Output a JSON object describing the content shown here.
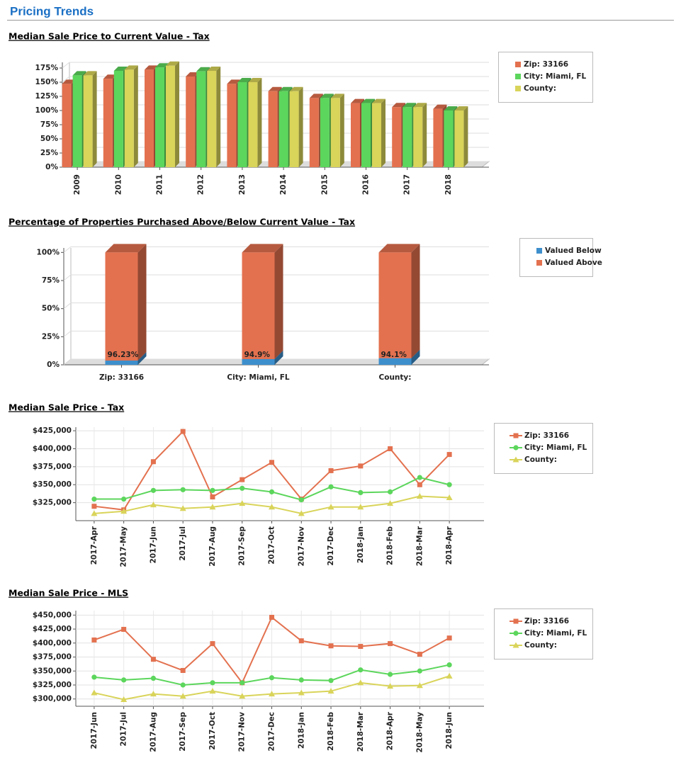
{
  "header": {
    "title": "Pricing Trends"
  },
  "chart_data": [
    {
      "type": "bar",
      "title": "Median Sale Price to Current Value - Tax",
      "categories": [
        "2009",
        "2010",
        "2011",
        "2012",
        "2013",
        "2014",
        "2015",
        "2016",
        "2017",
        "2018"
      ],
      "series": [
        {
          "name": "Zip: 33166",
          "color": "#e3714f",
          "values": [
            147,
            156,
            172,
            160,
            147,
            134,
            122,
            113,
            106,
            103
          ]
        },
        {
          "name": "City: Miami, FL",
          "color": "#5cd65c",
          "values": [
            162,
            170,
            176,
            169,
            150,
            134,
            122,
            113,
            106,
            100
          ]
        },
        {
          "name": "County:",
          "color": "#d9d45a",
          "values": [
            162,
            172,
            179,
            170,
            150,
            134,
            122,
            113,
            106,
            100
          ]
        }
      ],
      "ylim": [
        0,
        185
      ],
      "yticks": [
        {
          "value": 0,
          "label": "0%"
        },
        {
          "value": 25,
          "label": "25%"
        },
        {
          "value": 50,
          "label": "50%"
        },
        {
          "value": 75,
          "label": "75%"
        },
        {
          "value": 100,
          "label": "100%"
        },
        {
          "value": 125,
          "label": "125%"
        },
        {
          "value": 150,
          "label": "150%"
        },
        {
          "value": 175,
          "label": "175%"
        }
      ],
      "grid": true,
      "legend": "right"
    },
    {
      "type": "bar",
      "stacked": true,
      "title": "Percentage of Properties Purchased Above/Below Current Value - Tax",
      "categories": [
        "Zip: 33166",
        "City: Miami, FL",
        "County:"
      ],
      "series": [
        {
          "name": "Valued Below",
          "color": "#3d8fcc",
          "values": [
            3.77,
            5.1,
            5.9
          ]
        },
        {
          "name": "Valued Above",
          "color": "#e3714f",
          "values": [
            96.23,
            94.9,
            94.1
          ],
          "value_labels": [
            "96.23%",
            "94.9%",
            "94.1%"
          ]
        }
      ],
      "ylim": [
        0,
        104
      ],
      "yticks": [
        {
          "value": 0,
          "label": "0%"
        },
        {
          "value": 25,
          "label": "25%"
        },
        {
          "value": 50,
          "label": "50%"
        },
        {
          "value": 75,
          "label": "75%"
        },
        {
          "value": 100,
          "label": "100%"
        }
      ],
      "grid": true,
      "legend": "right"
    },
    {
      "type": "line",
      "title": "Median Sale Price - Tax",
      "categories": [
        "2017-Apr",
        "2017-May",
        "2017-Jun",
        "2017-Jul",
        "2017-Aug",
        "2017-Sep",
        "2017-Oct",
        "2017-Nov",
        "2017-Dec",
        "2018-Jan",
        "2018-Feb",
        "2018-Mar",
        "2018-Apr"
      ],
      "series": [
        {
          "name": "Zip: 33166",
          "color": "#e3714f",
          "marker": "square",
          "values": [
            320000,
            315000,
            382000,
            424000,
            333000,
            357000,
            381000,
            330000,
            369500,
            376000,
            400000,
            350000,
            392000
          ]
        },
        {
          "name": "City: Miami, FL",
          "color": "#5cd65c",
          "marker": "circle",
          "values": [
            330000,
            330000,
            342000,
            343000,
            342000,
            345000,
            340000,
            329000,
            347000,
            339000,
            340000,
            360000,
            350000
          ]
        },
        {
          "name": "County:",
          "color": "#d9d45a",
          "marker": "triangle",
          "values": [
            310000,
            313000,
            322000,
            317000,
            319000,
            324000,
            319000,
            310000,
            319000,
            319000,
            324000,
            334000,
            332000
          ]
        }
      ],
      "ylim": [
        300000,
        430000
      ],
      "yticks": [
        {
          "value": 325000,
          "label": "$325,000"
        },
        {
          "value": 350000,
          "label": "$350,000"
        },
        {
          "value": 375000,
          "label": "$375,000"
        },
        {
          "value": 400000,
          "label": "$400,000"
        },
        {
          "value": 425000,
          "label": "$425,000"
        }
      ],
      "grid": true,
      "legend": "right"
    },
    {
      "type": "line",
      "title": "Median Sale Price - MLS",
      "categories": [
        "2017-Jun",
        "2017-Jul",
        "2017-Aug",
        "2017-Sep",
        "2017-Oct",
        "2017-Nov",
        "2017-Dec",
        "2018-Jan",
        "2018-Feb",
        "2018-Mar",
        "2018-Apr",
        "2018-May",
        "2018-Jun"
      ],
      "series": [
        {
          "name": "Zip: 33166",
          "color": "#e3714f",
          "marker": "square",
          "values": [
            405500,
            424500,
            371000,
            351000,
            399000,
            329000,
            446000,
            404000,
            395000,
            394000,
            399000,
            380000,
            409000
          ]
        },
        {
          "name": "City: Miami, FL",
          "color": "#5cd65c",
          "marker": "circle",
          "values": [
            339000,
            334000,
            337000,
            325000,
            329000,
            329000,
            338000,
            334000,
            333000,
            352000,
            344000,
            350000,
            361000
          ]
        },
        {
          "name": "County:",
          "color": "#d9d45a",
          "marker": "triangle",
          "values": [
            311000,
            299000,
            309000,
            305000,
            314000,
            305000,
            309000,
            311000,
            314000,
            329000,
            323000,
            324000,
            341000
          ]
        }
      ],
      "ylim": [
        287000,
        458000
      ],
      "yticks": [
        {
          "value": 300000,
          "label": "$300,000"
        },
        {
          "value": 325000,
          "label": "$325,000"
        },
        {
          "value": 350000,
          "label": "$350,000"
        },
        {
          "value": 375000,
          "label": "$375,000"
        },
        {
          "value": 400000,
          "label": "$400,000"
        },
        {
          "value": 425000,
          "label": "$425,000"
        },
        {
          "value": 450000,
          "label": "$450,000"
        }
      ],
      "grid": true,
      "legend": "right"
    }
  ]
}
